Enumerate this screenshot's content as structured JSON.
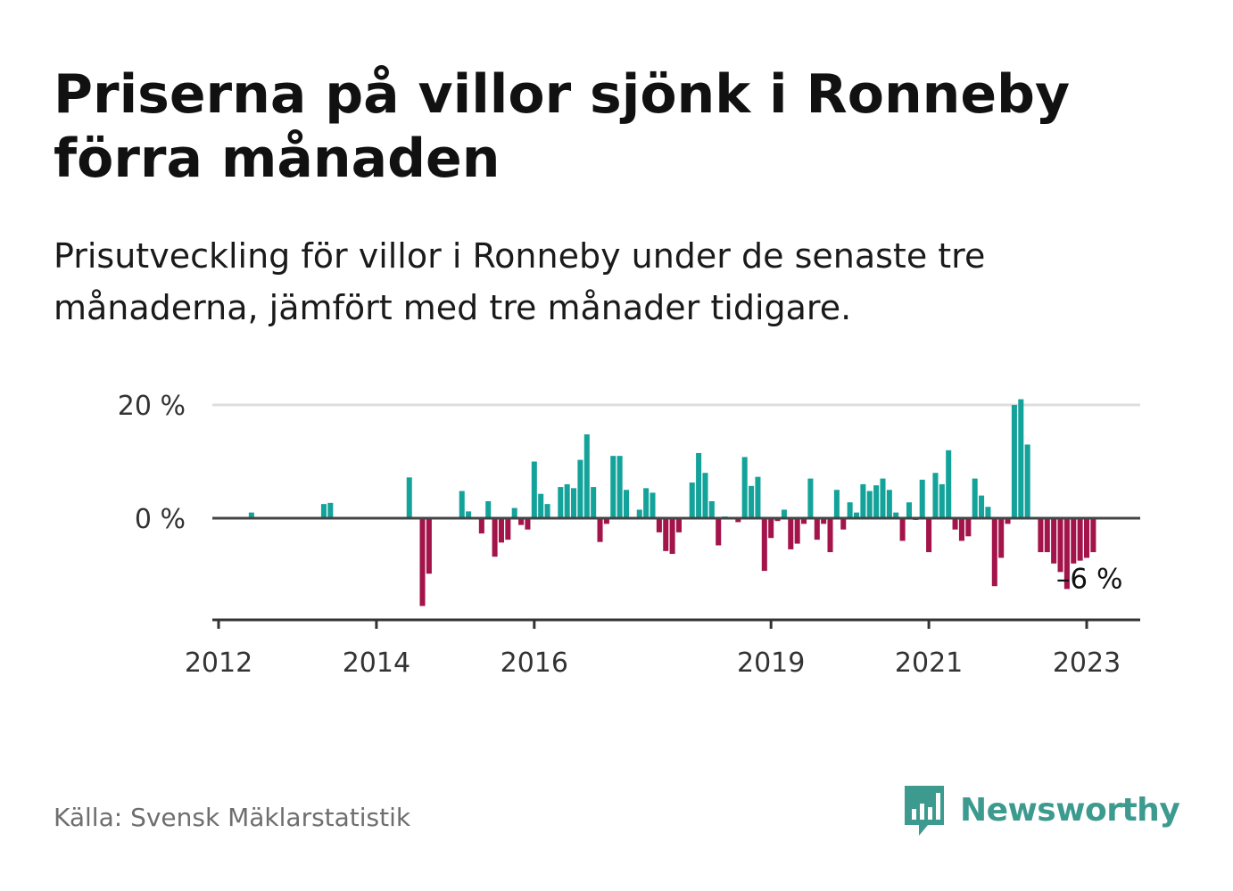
{
  "title": "Priserna på villor sjönk i Ronneby förra månaden",
  "subtitle": "Prisutveckling för villor i Ronneby under de senaste tre månaderna, jämfört med tre månader tidigare.",
  "source": "Källa: Svensk Mäklarstatistik",
  "brand": {
    "name": "Newsworthy",
    "icon": "newsworthy-logo-icon"
  },
  "colors": {
    "positive": "#14a39a",
    "negative": "#a3144a",
    "zero_line": "#444444",
    "grid": "#dddddd"
  },
  "chart_data": {
    "type": "bar",
    "title": "",
    "xlabel": "",
    "ylabel": "",
    "ylim": [
      -18,
      20
    ],
    "y_ticks": [
      {
        "value": 20,
        "label": "20 %"
      },
      {
        "value": 0,
        "label": "0 %"
      }
    ],
    "x_ticks": [
      {
        "value": "2012-01",
        "label": "2012"
      },
      {
        "value": "2014-01",
        "label": "2014"
      },
      {
        "value": "2016-01",
        "label": "2016"
      },
      {
        "value": "2019-01",
        "label": "2019"
      },
      {
        "value": "2021-01",
        "label": "2021"
      },
      {
        "value": "2023-01",
        "label": "2023"
      }
    ],
    "grid": true,
    "annotation": {
      "x": "2022-10",
      "value": -6,
      "label": "–6 %"
    },
    "points": [
      {
        "x": "2012-06",
        "y": 1
      },
      {
        "x": "2013-05",
        "y": 2.5
      },
      {
        "x": "2013-06",
        "y": 2.7
      },
      {
        "x": "2014-06",
        "y": 7.2
      },
      {
        "x": "2014-08",
        "y": -15.5
      },
      {
        "x": "2014-09",
        "y": -9.8
      },
      {
        "x": "2015-02",
        "y": 4.8
      },
      {
        "x": "2015-03",
        "y": 1.2
      },
      {
        "x": "2015-05",
        "y": -2.7
      },
      {
        "x": "2015-06",
        "y": 3
      },
      {
        "x": "2015-07",
        "y": -6.8
      },
      {
        "x": "2015-08",
        "y": -4.3
      },
      {
        "x": "2015-09",
        "y": -3.8
      },
      {
        "x": "2015-10",
        "y": 1.8
      },
      {
        "x": "2015-11",
        "y": -1.2
      },
      {
        "x": "2015-12",
        "y": -2
      },
      {
        "x": "2016-01",
        "y": 10
      },
      {
        "x": "2016-02",
        "y": 4.3
      },
      {
        "x": "2016-03",
        "y": 2.5
      },
      {
        "x": "2016-05",
        "y": 5.5
      },
      {
        "x": "2016-06",
        "y": 6
      },
      {
        "x": "2016-07",
        "y": 5.3
      },
      {
        "x": "2016-08",
        "y": 10.3
      },
      {
        "x": "2016-09",
        "y": 14.8
      },
      {
        "x": "2016-10",
        "y": 5.5
      },
      {
        "x": "2016-11",
        "y": -4.2
      },
      {
        "x": "2016-12",
        "y": -1
      },
      {
        "x": "2017-01",
        "y": 11
      },
      {
        "x": "2017-02",
        "y": 11
      },
      {
        "x": "2017-03",
        "y": 5
      },
      {
        "x": "2017-05",
        "y": 1.5
      },
      {
        "x": "2017-06",
        "y": 5.3
      },
      {
        "x": "2017-07",
        "y": 4.5
      },
      {
        "x": "2017-08",
        "y": -2.5
      },
      {
        "x": "2017-09",
        "y": -5.8
      },
      {
        "x": "2017-10",
        "y": -6.3
      },
      {
        "x": "2017-11",
        "y": -2.5
      },
      {
        "x": "2018-01",
        "y": 6.3
      },
      {
        "x": "2018-02",
        "y": 11.5
      },
      {
        "x": "2018-03",
        "y": 8
      },
      {
        "x": "2018-04",
        "y": 3
      },
      {
        "x": "2018-05",
        "y": -4.8
      },
      {
        "x": "2018-06",
        "y": 0.3
      },
      {
        "x": "2018-08",
        "y": -0.7
      },
      {
        "x": "2018-09",
        "y": 10.8
      },
      {
        "x": "2018-10",
        "y": 5.7
      },
      {
        "x": "2018-11",
        "y": 7.3
      },
      {
        "x": "2018-12",
        "y": -9.3
      },
      {
        "x": "2019-01",
        "y": -3.5
      },
      {
        "x": "2019-02",
        "y": -0.5
      },
      {
        "x": "2019-03",
        "y": 1.5
      },
      {
        "x": "2019-04",
        "y": -5.5
      },
      {
        "x": "2019-05",
        "y": -4.5
      },
      {
        "x": "2019-06",
        "y": -1
      },
      {
        "x": "2019-07",
        "y": 7
      },
      {
        "x": "2019-08",
        "y": -3.8
      },
      {
        "x": "2019-09",
        "y": -1
      },
      {
        "x": "2019-10",
        "y": -6
      },
      {
        "x": "2019-11",
        "y": 5
      },
      {
        "x": "2019-12",
        "y": -2
      },
      {
        "x": "2020-01",
        "y": 2.8
      },
      {
        "x": "2020-02",
        "y": 1
      },
      {
        "x": "2020-03",
        "y": 6
      },
      {
        "x": "2020-04",
        "y": 4.8
      },
      {
        "x": "2020-05",
        "y": 5.8
      },
      {
        "x": "2020-06",
        "y": 7
      },
      {
        "x": "2020-07",
        "y": 5
      },
      {
        "x": "2020-08",
        "y": 1
      },
      {
        "x": "2020-09",
        "y": -4
      },
      {
        "x": "2020-10",
        "y": 2.8
      },
      {
        "x": "2020-11",
        "y": -0.3
      },
      {
        "x": "2020-12",
        "y": 6.8
      },
      {
        "x": "2021-01",
        "y": -6
      },
      {
        "x": "2021-02",
        "y": 8
      },
      {
        "x": "2021-03",
        "y": 6
      },
      {
        "x": "2021-04",
        "y": 12
      },
      {
        "x": "2021-05",
        "y": -2
      },
      {
        "x": "2021-06",
        "y": -4
      },
      {
        "x": "2021-07",
        "y": -3.2
      },
      {
        "x": "2021-08",
        "y": 7
      },
      {
        "x": "2021-09",
        "y": 4
      },
      {
        "x": "2021-10",
        "y": 2
      },
      {
        "x": "2021-11",
        "y": -12
      },
      {
        "x": "2021-12",
        "y": -7
      },
      {
        "x": "2022-01",
        "y": -1
      },
      {
        "x": "2022-02",
        "y": 20
      },
      {
        "x": "2022-03",
        "y": 21
      },
      {
        "x": "2022-04",
        "y": 13
      },
      {
        "x": "2022-06",
        "y": -6
      },
      {
        "x": "2022-07",
        "y": -6
      },
      {
        "x": "2022-08",
        "y": -8
      },
      {
        "x": "2022-09",
        "y": -9.5
      },
      {
        "x": "2022-10",
        "y": -12.5
      },
      {
        "x": "2022-11",
        "y": -8
      },
      {
        "x": "2022-12",
        "y": -7.5
      },
      {
        "x": "2023-01",
        "y": -7
      },
      {
        "x": "2023-02",
        "y": -6
      }
    ]
  }
}
